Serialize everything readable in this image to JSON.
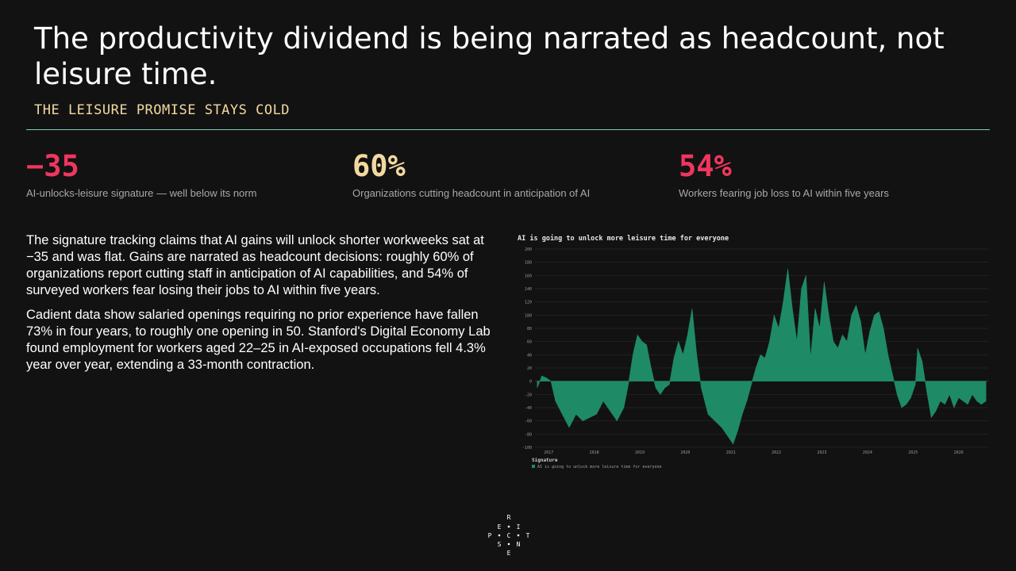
{
  "title": "The productivity dividend is being narrated as headcount, not leisure time.",
  "subtitle": "THE LEISURE PROMISE STAYS COLD",
  "colors": {
    "accent_red": "#f0365f",
    "accent_cream": "#f3d9a0",
    "rule": "#7fcfae",
    "series": "#1f8a66"
  },
  "stats": [
    {
      "value": "−35",
      "caption": "AI-unlocks-leisure signature — well below its norm",
      "color": "#f0365f"
    },
    {
      "value": "60%",
      "caption": "Organizations cutting headcount in anticipation of AI",
      "color": "#f3d9a0"
    },
    {
      "value": "54%",
      "caption": "Workers fearing job loss to AI within five years",
      "color": "#f0365f"
    }
  ],
  "body": [
    "The signature tracking claims that AI gains will unlock shorter workweeks sat at −35 and was flat. Gains are narrated as headcount decisions: roughly 60% of organizations report cutting staff in anticipation of AI capabilities, and 54% of surveyed workers fear losing their jobs to AI within five years.",
    "Cadient data show salaried openings requiring no prior experience have fallen 73% in four years, to roughly one opening in 50. Stanford's Digital Economy Lab found employment for workers aged 22–25 in AI-exposed occupations fell 4.3% year over year, extending a 33-month contraction."
  ],
  "logo_letters": [
    "R",
    "E",
    "I",
    "P",
    "C",
    "T",
    "S",
    "N",
    "E"
  ],
  "chart_data": {
    "type": "area",
    "title": "AI is going to unlock more leisure time for everyone",
    "legend_title": "Signature",
    "legend_entry": "AI is going to unlock more leisure time for everyone",
    "legend_position": "bottom-left",
    "ylim": [
      -100,
      200
    ],
    "yticks": [
      -100,
      -80,
      -60,
      -40,
      -20,
      0,
      20,
      40,
      60,
      80,
      100,
      120,
      140,
      160,
      180,
      200
    ],
    "xlim": [
      2016.7,
      2026.65
    ],
    "xticks": [
      "2017",
      "2018",
      "2019",
      "2020",
      "2021",
      "2022",
      "2023",
      "2024",
      "2025",
      "2026"
    ],
    "grid": true,
    "series": [
      {
        "values": [
          [
            2016.75,
            -10
          ],
          [
            2016.85,
            8
          ],
          [
            2016.95,
            5
          ],
          [
            2017.05,
            0
          ],
          [
            2017.15,
            -30
          ],
          [
            2017.3,
            -50
          ],
          [
            2017.45,
            -70
          ],
          [
            2017.6,
            -50
          ],
          [
            2017.75,
            -60
          ],
          [
            2017.9,
            -55
          ],
          [
            2018.05,
            -50
          ],
          [
            2018.2,
            -30
          ],
          [
            2018.35,
            -45
          ],
          [
            2018.5,
            -60
          ],
          [
            2018.65,
            -40
          ],
          [
            2018.75,
            -5
          ],
          [
            2018.85,
            40
          ],
          [
            2018.95,
            70
          ],
          [
            2019.05,
            60
          ],
          [
            2019.15,
            55
          ],
          [
            2019.25,
            20
          ],
          [
            2019.35,
            -10
          ],
          [
            2019.45,
            -20
          ],
          [
            2019.55,
            -10
          ],
          [
            2019.65,
            -5
          ],
          [
            2019.75,
            35
          ],
          [
            2019.85,
            60
          ],
          [
            2019.95,
            40
          ],
          [
            2020.05,
            70
          ],
          [
            2020.15,
            110
          ],
          [
            2020.25,
            40
          ],
          [
            2020.35,
            -10
          ],
          [
            2020.5,
            -50
          ],
          [
            2020.65,
            -60
          ],
          [
            2020.8,
            -70
          ],
          [
            2020.95,
            -85
          ],
          [
            2021.05,
            -95
          ],
          [
            2021.15,
            -75
          ],
          [
            2021.25,
            -50
          ],
          [
            2021.35,
            -30
          ],
          [
            2021.45,
            -5
          ],
          [
            2021.55,
            20
          ],
          [
            2021.65,
            40
          ],
          [
            2021.75,
            35
          ],
          [
            2021.85,
            60
          ],
          [
            2021.95,
            100
          ],
          [
            2022.05,
            80
          ],
          [
            2022.15,
            120
          ],
          [
            2022.25,
            170
          ],
          [
            2022.35,
            110
          ],
          [
            2022.45,
            60
          ],
          [
            2022.55,
            140
          ],
          [
            2022.65,
            160
          ],
          [
            2022.75,
            35
          ],
          [
            2022.85,
            110
          ],
          [
            2022.95,
            80
          ],
          [
            2023.05,
            150
          ],
          [
            2023.15,
            100
          ],
          [
            2023.25,
            60
          ],
          [
            2023.35,
            50
          ],
          [
            2023.45,
            70
          ],
          [
            2023.55,
            60
          ],
          [
            2023.65,
            100
          ],
          [
            2023.75,
            115
          ],
          [
            2023.85,
            90
          ],
          [
            2023.95,
            40
          ],
          [
            2024.05,
            75
          ],
          [
            2024.15,
            100
          ],
          [
            2024.25,
            105
          ],
          [
            2024.35,
            80
          ],
          [
            2024.45,
            40
          ],
          [
            2024.55,
            10
          ],
          [
            2024.65,
            -20
          ],
          [
            2024.75,
            -40
          ],
          [
            2024.85,
            -35
          ],
          [
            2024.95,
            -25
          ],
          [
            2025.05,
            -5
          ],
          [
            2025.1,
            50
          ],
          [
            2025.2,
            30
          ],
          [
            2025.3,
            -15
          ],
          [
            2025.4,
            -55
          ],
          [
            2025.5,
            -45
          ],
          [
            2025.6,
            -30
          ],
          [
            2025.7,
            -35
          ],
          [
            2025.8,
            -20
          ],
          [
            2025.9,
            -40
          ],
          [
            2026.0,
            -25
          ],
          [
            2026.1,
            -30
          ],
          [
            2026.2,
            -35
          ],
          [
            2026.3,
            -20
          ],
          [
            2026.4,
            -30
          ],
          [
            2026.5,
            -35
          ],
          [
            2026.6,
            -30
          ]
        ]
      }
    ]
  }
}
